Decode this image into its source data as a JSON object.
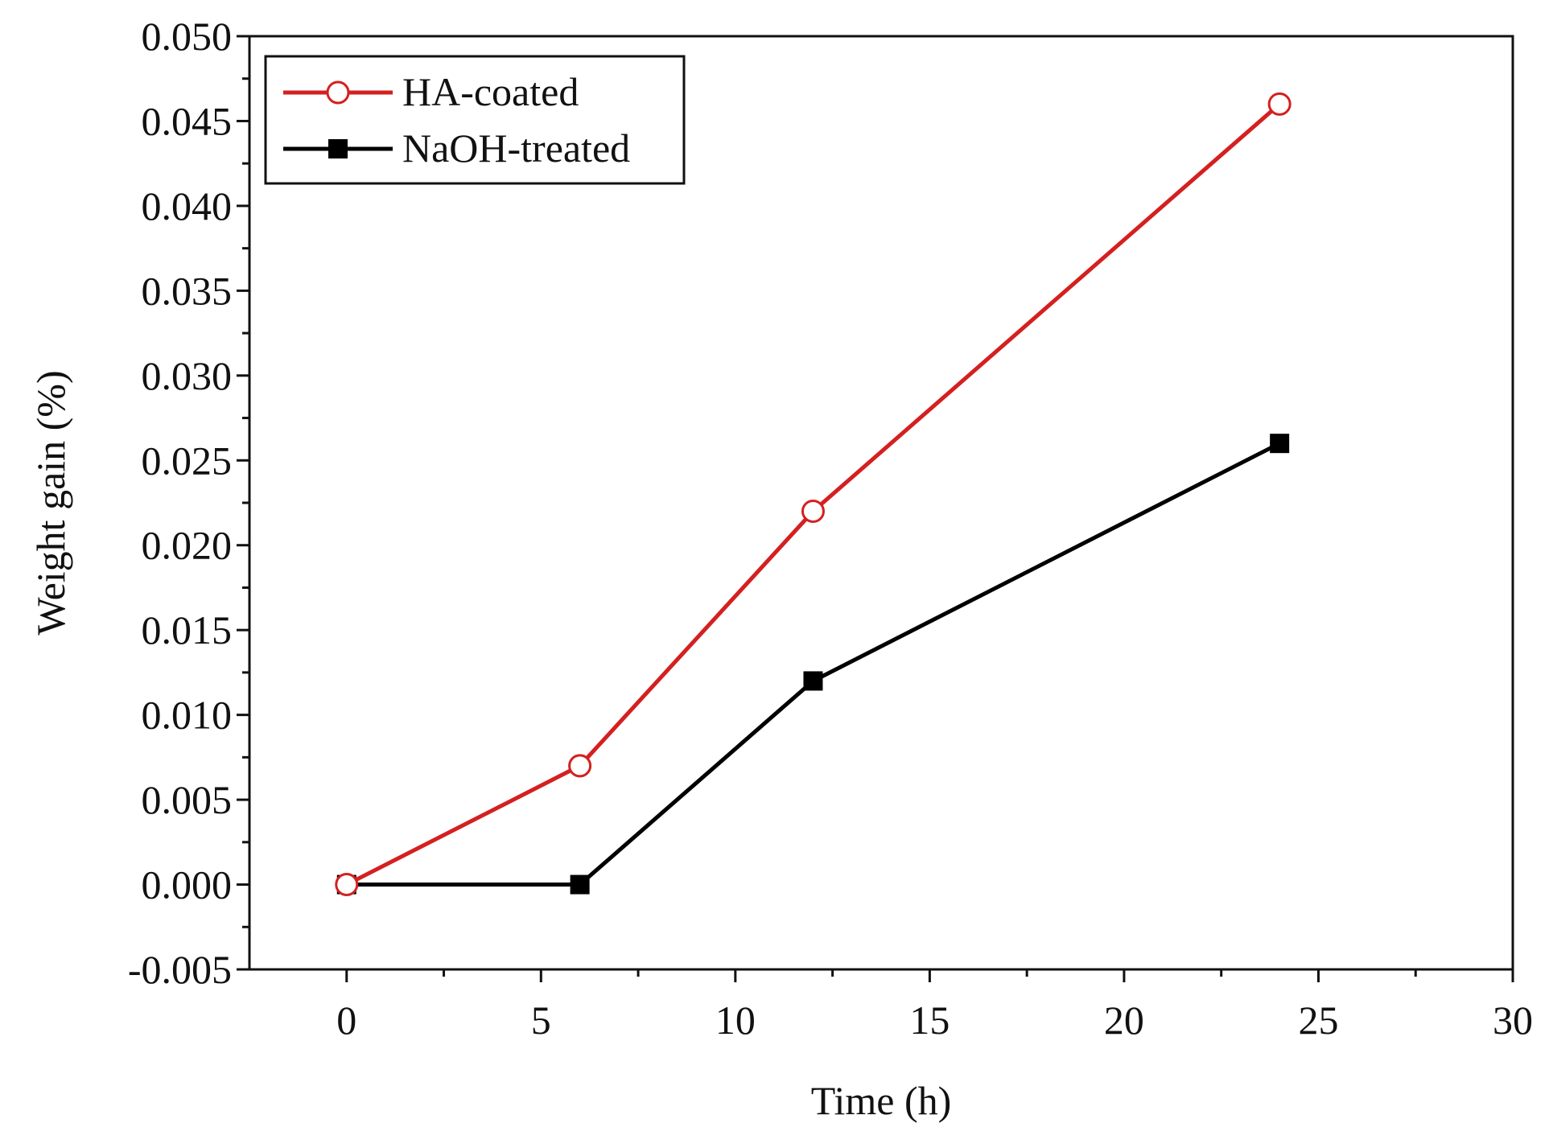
{
  "chart_data": {
    "type": "line",
    "title": "",
    "xlabel": "Time (h)",
    "ylabel": "Weight gain (%)",
    "xlim": [
      -2.5,
      30
    ],
    "ylim": [
      -0.005,
      0.05
    ],
    "xticks": [
      0,
      5,
      10,
      15,
      20,
      25,
      30
    ],
    "xtick_labels": [
      "0",
      "5",
      "10",
      "15",
      "20",
      "25",
      "30"
    ],
    "yticks": [
      -0.005,
      0,
      0.005,
      0.01,
      0.015,
      0.02,
      0.025,
      0.03,
      0.035,
      0.04,
      0.045,
      0.05
    ],
    "ytick_labels": [
      "-0.005",
      "0.000",
      "0.005",
      "0.010",
      "0.015",
      "0.020",
      "0.025",
      "0.030",
      "0.035",
      "0.040",
      "0.045",
      "0.050"
    ],
    "grid": false,
    "legend_position": "top-left",
    "series": [
      {
        "name": "HA-coated",
        "color": "#d42020",
        "marker": "open-circle",
        "x": [
          0,
          6,
          12,
          24
        ],
        "y": [
          0.0,
          0.007,
          0.022,
          0.046
        ]
      },
      {
        "name": "NaOH-treated",
        "color": "#000000",
        "marker": "filled-square",
        "x": [
          0,
          6,
          12,
          24
        ],
        "y": [
          0.0,
          0.0,
          0.012,
          0.026
        ]
      }
    ]
  }
}
